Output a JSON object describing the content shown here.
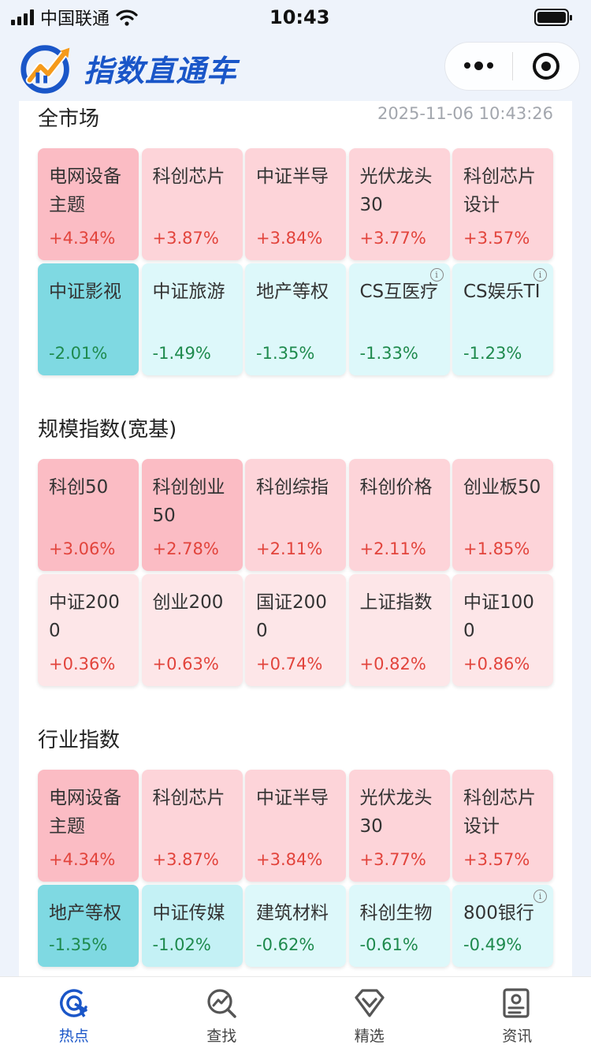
{
  "status": {
    "carrier": "中国联通",
    "time": "10:43"
  },
  "header": {
    "app_name": "指数直通车"
  },
  "sections": [
    {
      "title": "全市场",
      "timestamp": "2025-11-06 10:43:26",
      "tiles": [
        {
          "name": "电网设备主题",
          "pct": "+4.34%",
          "dir": "up"
        },
        {
          "name": "科创芯片",
          "pct": "+3.87%",
          "dir": "up"
        },
        {
          "name": "中证半导",
          "pct": "+3.84%",
          "dir": "up"
        },
        {
          "name": "光伏龙头30",
          "pct": "+3.77%",
          "dir": "up"
        },
        {
          "name": "科创芯片设计",
          "pct": "+3.57%",
          "dir": "up"
        },
        {
          "name": "中证影视",
          "pct": "-2.01%",
          "dir": "down"
        },
        {
          "name": "中证旅游",
          "pct": "-1.49%",
          "dir": "down"
        },
        {
          "name": "地产等权",
          "pct": "-1.35%",
          "dir": "down"
        },
        {
          "name": "CS互医疗",
          "pct": "-1.33%",
          "dir": "down",
          "info": true
        },
        {
          "name": "CS娱乐TI",
          "pct": "-1.23%",
          "dir": "down",
          "info": true
        }
      ]
    },
    {
      "title": "规模指数(宽基)",
      "tiles": [
        {
          "name": "科创50",
          "pct": "+3.06%",
          "dir": "up"
        },
        {
          "name": "科创创业50",
          "pct": "+2.78%",
          "dir": "up"
        },
        {
          "name": "科创综指",
          "pct": "+2.11%",
          "dir": "up"
        },
        {
          "name": "科创价格",
          "pct": "+2.11%",
          "dir": "up"
        },
        {
          "name": "创业板50",
          "pct": "+1.85%",
          "dir": "up"
        },
        {
          "name": "中证2000",
          "pct": "+0.36%",
          "dir": "up"
        },
        {
          "name": "创业200",
          "pct": "+0.63%",
          "dir": "up"
        },
        {
          "name": "国证2000",
          "pct": "+0.74%",
          "dir": "up"
        },
        {
          "name": "上证指数",
          "pct": "+0.82%",
          "dir": "up"
        },
        {
          "name": "中证1000",
          "pct": "+0.86%",
          "dir": "up"
        }
      ]
    },
    {
      "title": "行业指数",
      "tiles": [
        {
          "name": "电网设备主题",
          "pct": "+4.34%",
          "dir": "up"
        },
        {
          "name": "科创芯片",
          "pct": "+3.87%",
          "dir": "up"
        },
        {
          "name": "中证半导",
          "pct": "+3.84%",
          "dir": "up"
        },
        {
          "name": "光伏龙头30",
          "pct": "+3.77%",
          "dir": "up"
        },
        {
          "name": "科创芯片设计",
          "pct": "+3.57%",
          "dir": "up"
        },
        {
          "name": "地产等权",
          "pct": "-1.35%",
          "dir": "down"
        },
        {
          "name": "中证传媒",
          "pct": "-1.02%",
          "dir": "down"
        },
        {
          "name": "建筑材料",
          "pct": "-0.62%",
          "dir": "down"
        },
        {
          "name": "科创生物",
          "pct": "-0.61%",
          "dir": "down"
        },
        {
          "name": "800银行",
          "pct": "-0.49%",
          "dir": "down",
          "info": true
        }
      ]
    }
  ],
  "tabbar": [
    {
      "label": "热点",
      "icon": "hotspot-icon",
      "active": true
    },
    {
      "label": "查找",
      "icon": "search-chart-icon"
    },
    {
      "label": "精选",
      "icon": "diamond-icon"
    },
    {
      "label": "资讯",
      "icon": "news-icon"
    }
  ],
  "colors": {
    "brand": "#1a56c8",
    "up": "#e2443c",
    "down": "#1e8a4d"
  }
}
